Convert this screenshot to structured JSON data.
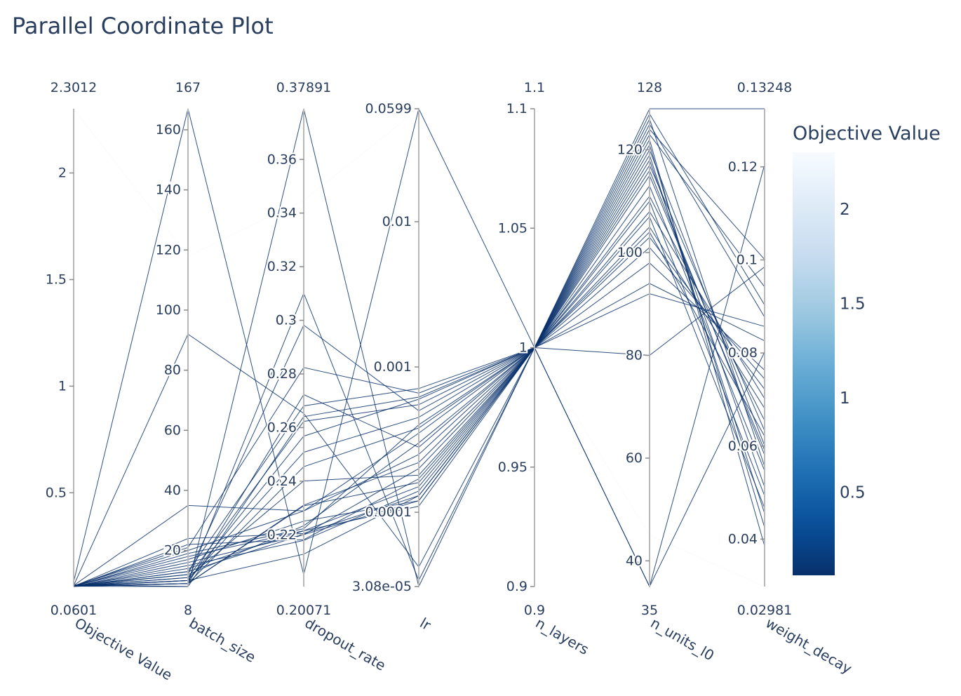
{
  "chart_data": {
    "type": "parallel_coordinates",
    "title": "Parallel Coordinate Plot",
    "colorbar": {
      "title": "Objective Value",
      "range": [
        0.0601,
        2.3012
      ],
      "ticks": [
        "0.5",
        "1",
        "1.5",
        "2"
      ],
      "tick_values": [
        0.5,
        1,
        1.5,
        2
      ],
      "colorscale": [
        "#f7fbff",
        "#deebf7",
        "#c6dbef",
        "#9ecae1",
        "#6baed6",
        "#4292c6",
        "#2171b5",
        "#08519c",
        "#08306b"
      ],
      "reversed": true
    },
    "dimensions": [
      {
        "label": "Objective Value",
        "range": [
          0.0601,
          2.3012
        ],
        "scale": "linear",
        "min_label": "0.0601",
        "max_label": "2.3012",
        "ticks": [
          "0.5",
          "1",
          "1.5",
          "2"
        ],
        "tick_values": [
          0.5,
          1,
          1.5,
          2
        ]
      },
      {
        "label": "batch_size",
        "range": [
          8,
          167
        ],
        "scale": "linear",
        "min_label": "8",
        "max_label": "167",
        "ticks": [
          "20",
          "40",
          "60",
          "80",
          "100",
          "120",
          "140",
          "160"
        ],
        "tick_values": [
          20,
          40,
          60,
          80,
          100,
          120,
          140,
          160
        ]
      },
      {
        "label": "dropout_rate",
        "range": [
          0.20071,
          0.37891
        ],
        "scale": "linear",
        "min_label": "0.20071",
        "max_label": "0.37891",
        "ticks": [
          "0.22",
          "0.24",
          "0.26",
          "0.28",
          "0.3",
          "0.32",
          "0.34",
          "0.36"
        ],
        "tick_values": [
          0.22,
          0.24,
          0.26,
          0.28,
          0.3,
          0.32,
          0.34,
          0.36
        ]
      },
      {
        "label": "lr",
        "range": [
          3.08e-05,
          0.0599
        ],
        "scale": "log",
        "min_label": "",
        "max_label": "",
        "ticks": [
          "3.08e-05",
          "0.0001",
          "0.001",
          "0.01",
          "0.0599"
        ],
        "tick_values": [
          3.08e-05,
          0.0001,
          0.001,
          0.01,
          0.0599
        ]
      },
      {
        "label": "n_layers",
        "range": [
          0.9,
          1.1
        ],
        "scale": "linear",
        "min_label": "0.9",
        "max_label": "1.1",
        "ticks": [
          "0.9",
          "0.95",
          "1",
          "1.05",
          "1.1"
        ],
        "tick_values": [
          0.9,
          0.95,
          1,
          1.05,
          1.1
        ]
      },
      {
        "label": "n_units_l0",
        "range": [
          35,
          128
        ],
        "scale": "linear",
        "min_label": "35",
        "max_label": "128",
        "ticks": [
          "40",
          "60",
          "80",
          "100",
          "120"
        ],
        "tick_values": [
          40,
          60,
          80,
          100,
          120
        ]
      },
      {
        "label": "weight_decay",
        "range": [
          0.02981,
          0.13248
        ],
        "scale": "linear",
        "min_label": "0.02981",
        "max_label": "0.13248",
        "ticks": [
          "0.04",
          "0.06",
          "0.08",
          "0.1",
          "0.12"
        ],
        "tick_values": [
          0.04,
          0.06,
          0.08,
          0.1,
          0.12
        ]
      }
    ],
    "trials": [
      [
        2.3012,
        118,
        0.3448,
        0.0599,
        1,
        45,
        0.02981
      ],
      [
        0.082,
        167,
        0.2051,
        0.0599,
        1,
        128,
        0.13248
      ],
      [
        0.068,
        8,
        0.37891,
        3.08e-05,
        1,
        35,
        0.1205
      ],
      [
        0.065,
        92,
        0.2653,
        4.2e-05,
        1,
        124,
        0.1001
      ],
      [
        0.064,
        12,
        0.2982,
        0.0005,
        1,
        35,
        0.0802
      ],
      [
        0.063,
        10,
        0.3101,
        3.4e-05,
        1,
        80,
        0.0985
      ],
      [
        0.0601,
        16,
        0.2201,
        0.00012,
        1,
        122,
        0.0385
      ],
      [
        0.0612,
        24,
        0.2205,
        0.00013,
        1,
        121,
        0.0425
      ],
      [
        0.0625,
        14,
        0.2215,
        0.00015,
        1,
        119,
        0.0455
      ],
      [
        0.0608,
        9,
        0.2308,
        0.00016,
        1,
        118,
        0.0512
      ],
      [
        0.0615,
        11,
        0.2401,
        0.00018,
        1,
        126,
        0.0556
      ],
      [
        0.0632,
        18,
        0.2215,
        0.00011,
        1,
        120,
        0.0601
      ],
      [
        0.0621,
        13,
        0.2201,
        0.0002,
        1,
        117,
        0.0633
      ],
      [
        0.0642,
        20,
        0.2289,
        0.00025,
        1,
        115,
        0.0591
      ],
      [
        0.0603,
        15,
        0.2179,
        0.00014,
        1,
        111,
        0.0655
      ],
      [
        0.0618,
        10,
        0.2128,
        0.00013,
        1,
        108,
        0.0702
      ],
      [
        0.0611,
        12,
        0.2234,
        0.0003,
        1,
        105,
        0.0681
      ],
      [
        0.0609,
        9,
        0.2311,
        0.00022,
        1,
        103,
        0.0722
      ],
      [
        0.0627,
        17,
        0.2251,
        0.00012,
        1,
        101,
        0.0744
      ],
      [
        0.0605,
        22,
        0.2182,
        0.00017,
        1,
        98,
        0.0763
      ],
      [
        0.0614,
        19,
        0.2223,
        0.0004,
        1,
        94,
        0.0826
      ],
      [
        0.0651,
        35,
        0.2289,
        0.00035,
        1,
        92,
        0.0857
      ],
      [
        0.0638,
        9,
        0.2454,
        0.00038,
        1,
        125,
        0.0877
      ],
      [
        0.0613,
        10,
        0.2508,
        0.00045,
        1,
        127,
        0.0903
      ],
      [
        0.0622,
        11,
        0.2623,
        0.00055,
        1,
        123,
        0.0942
      ],
      [
        0.0616,
        8,
        0.2641,
        0.00062,
        1,
        116,
        0.0581
      ],
      [
        0.0604,
        13,
        0.2681,
        0.00071,
        1,
        113,
        0.0547
      ],
      [
        0.0619,
        9,
        0.2723,
        0.00028,
        1,
        110,
        0.0493
      ],
      [
        0.0631,
        21,
        0.2824,
        0.00066,
        1,
        107,
        0.0467
      ],
      [
        0.0607,
        10,
        0.2568,
        0.0006,
        1,
        104,
        0.0621
      ]
    ]
  }
}
